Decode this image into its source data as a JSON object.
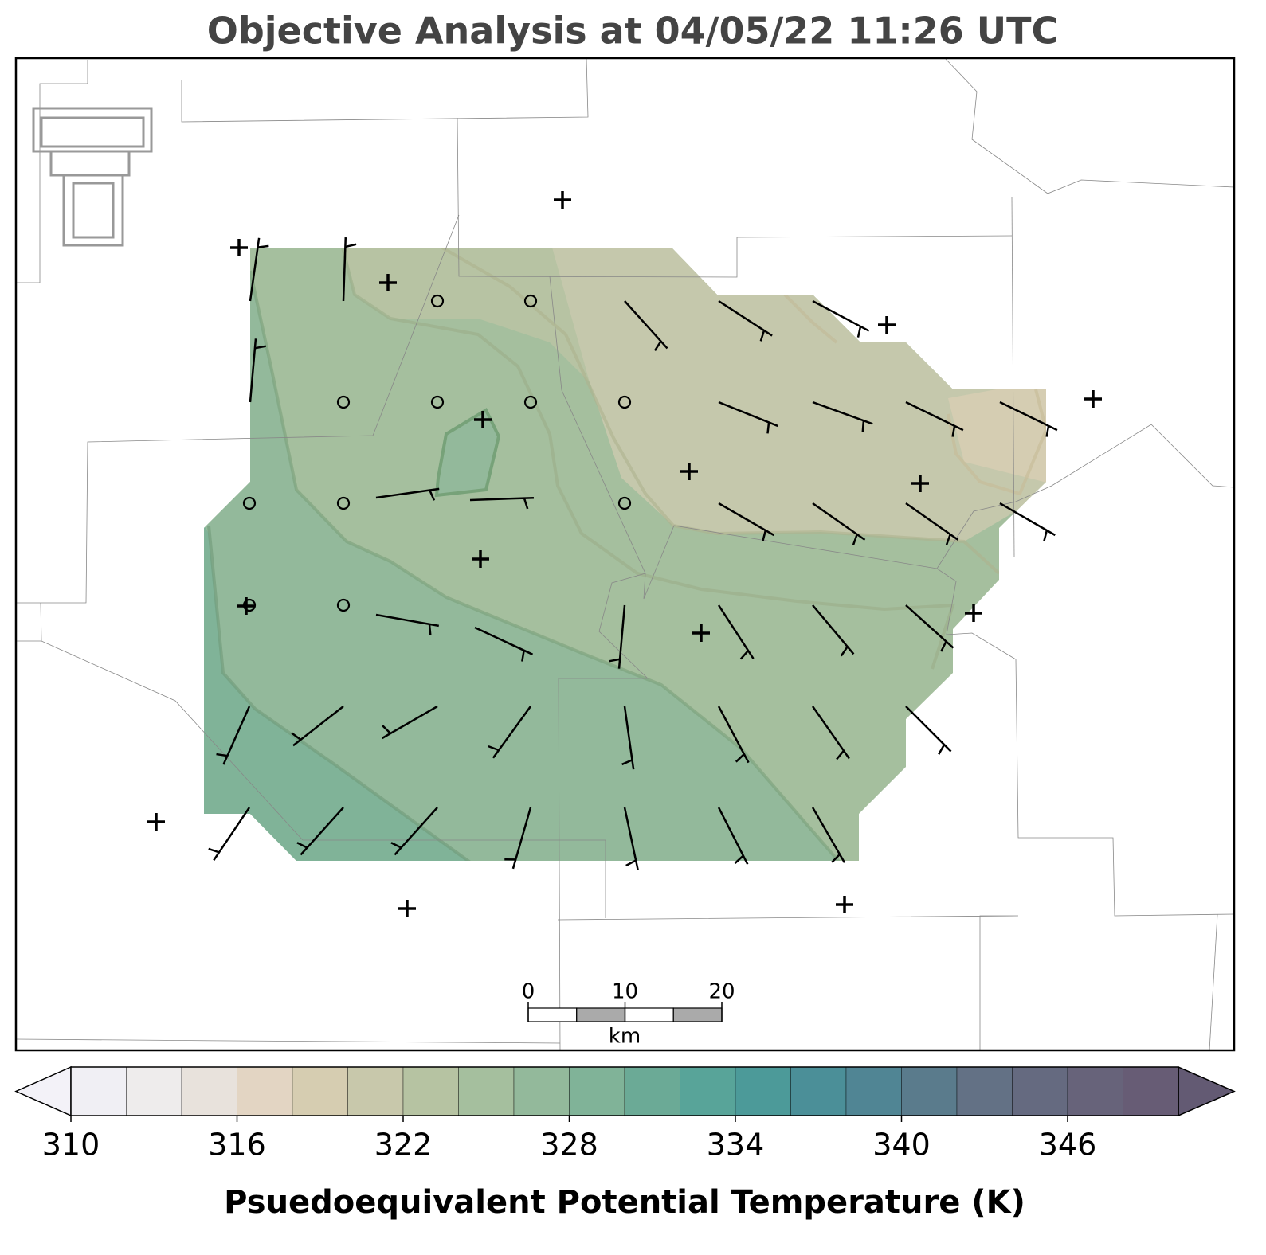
{
  "title": "Objective Analysis at 04/05/22 11:26 UTC",
  "scale_bar": {
    "ticks": [
      0,
      10,
      20
    ],
    "unit": "km"
  },
  "colorbar": {
    "label": "Psuedoequivalent Potential Temperature (K)",
    "levels": [
      310,
      312,
      314,
      316,
      318,
      320,
      322,
      324,
      326,
      328,
      330,
      332,
      334,
      336,
      338,
      340,
      342,
      344,
      346,
      348,
      350
    ],
    "ticks": [
      310,
      316,
      322,
      328,
      334,
      340,
      346
    ],
    "colors": [
      "#f0eff4",
      "#eeecec",
      "#e8e2dc",
      "#e3d5c3",
      "#d6cdb1",
      "#c8c8ab",
      "#b6c3a2",
      "#a5bf9e",
      "#93b99b",
      "#80b398",
      "#6baa96",
      "#58a499",
      "#4c9a99",
      "#4b8f98",
      "#508594",
      "#5a7b8c",
      "#637185",
      "#656a80",
      "#67637a",
      "#675c75"
    ],
    "extend_colors": [
      "#f3f2f8",
      "#635a73"
    ]
  }
}
